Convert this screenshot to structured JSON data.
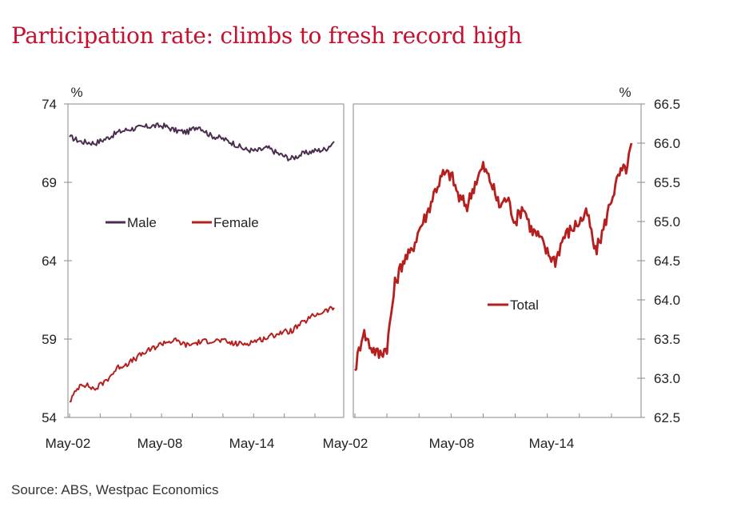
{
  "title": "Participation rate: climbs to fresh record high",
  "source": "Source: ABS, Westpac Economics",
  "colors": {
    "male": "#4a2d4f",
    "female": "#b5201f",
    "total": "#b5201f",
    "title": "#c8102e"
  },
  "chart_data": [
    {
      "type": "line",
      "panel": "left",
      "unit_label": "%",
      "ylim": [
        54,
        74
      ],
      "yticks": [
        "74",
        "69",
        "64",
        "59",
        "54"
      ],
      "xlim": [
        "2002-05",
        "2019-08"
      ],
      "xticks": [
        "May-02",
        "May-08",
        "May-14"
      ],
      "legend": "middle",
      "series": [
        {
          "name": "Male",
          "color": "#4a2d4f",
          "x": [
            "2002-05",
            "2003-02",
            "2004-01",
            "2004-10",
            "2005-07",
            "2006-04",
            "2007-01",
            "2007-10",
            "2008-07",
            "2009-04",
            "2010-01",
            "2010-10",
            "2011-07",
            "2012-04",
            "2013-01",
            "2013-10",
            "2014-07",
            "2015-04",
            "2016-01",
            "2016-10",
            "2017-07",
            "2018-04",
            "2019-01",
            "2019-08"
          ],
          "values": [
            71.9,
            71.6,
            71.5,
            71.8,
            72.2,
            72.4,
            72.5,
            72.6,
            72.6,
            72.3,
            72.2,
            72.6,
            72.0,
            71.8,
            71.5,
            71.1,
            71.0,
            71.2,
            70.8,
            70.5,
            70.8,
            71.0,
            71.1,
            71.6
          ]
        },
        {
          "name": "Female",
          "color": "#b5201f",
          "x": [
            "2002-05",
            "2003-02",
            "2004-01",
            "2004-10",
            "2005-07",
            "2006-04",
            "2007-01",
            "2007-10",
            "2008-07",
            "2009-04",
            "2010-01",
            "2010-10",
            "2011-07",
            "2012-04",
            "2013-01",
            "2013-10",
            "2014-07",
            "2015-04",
            "2016-01",
            "2016-10",
            "2017-07",
            "2018-04",
            "2019-01",
            "2019-08"
          ],
          "values": [
            55.0,
            56.2,
            55.8,
            56.4,
            57.2,
            57.5,
            58.0,
            58.4,
            58.8,
            58.9,
            58.6,
            58.8,
            58.9,
            58.9,
            58.7,
            58.7,
            58.9,
            59.1,
            59.4,
            59.5,
            60.0,
            60.5,
            60.8,
            61.0
          ]
        }
      ]
    },
    {
      "type": "line",
      "panel": "right",
      "unit_label": "%",
      "ylim": [
        62.5,
        66.5
      ],
      "yticks": [
        "66.5",
        "66.0",
        "65.5",
        "65.0",
        "64.5",
        "64.0",
        "63.5",
        "63.0",
        "62.5"
      ],
      "xlim": [
        "2002-05",
        "2019-08"
      ],
      "xticks": [
        "May-02",
        "May-08",
        "May-14"
      ],
      "legend": "middle",
      "series": [
        {
          "name": "Total",
          "color": "#b5201f",
          "x": [
            "2002-05",
            "2002-11",
            "2003-05",
            "2003-11",
            "2004-05",
            "2004-11",
            "2005-05",
            "2005-11",
            "2006-05",
            "2006-11",
            "2007-05",
            "2007-11",
            "2008-05",
            "2008-11",
            "2009-05",
            "2009-11",
            "2010-05",
            "2010-11",
            "2011-05",
            "2011-11",
            "2012-05",
            "2012-11",
            "2013-05",
            "2013-11",
            "2014-05",
            "2014-11",
            "2015-05",
            "2015-11",
            "2016-05",
            "2016-11",
            "2017-05",
            "2017-11",
            "2018-05",
            "2018-11",
            "2019-05",
            "2019-08"
          ],
          "values": [
            63.1,
            63.6,
            63.4,
            63.3,
            63.4,
            64.2,
            64.5,
            64.6,
            64.9,
            65.1,
            65.4,
            65.6,
            65.6,
            65.3,
            65.2,
            65.5,
            65.7,
            65.5,
            65.2,
            65.3,
            65.0,
            65.2,
            64.9,
            64.8,
            64.6,
            64.5,
            64.8,
            64.9,
            65.0,
            65.1,
            64.6,
            64.9,
            65.3,
            65.6,
            65.7,
            66.0
          ]
        }
      ]
    }
  ]
}
